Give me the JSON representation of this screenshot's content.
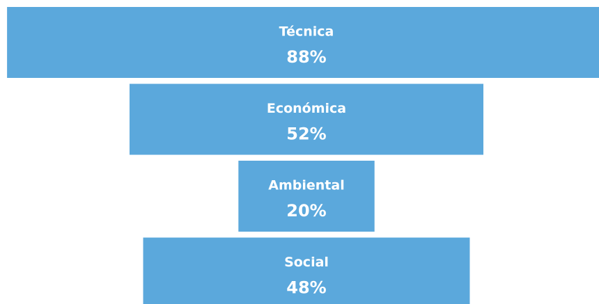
{
  "chart_data": {
    "type": "funnel",
    "categories": [
      "Técnica",
      "Económica",
      "Ambiental",
      "Social"
    ],
    "values": [
      88,
      52,
      20,
      48
    ],
    "value_labels": [
      "88%",
      "52%",
      "20%",
      "48%"
    ],
    "color": "#5ba8dc"
  }
}
